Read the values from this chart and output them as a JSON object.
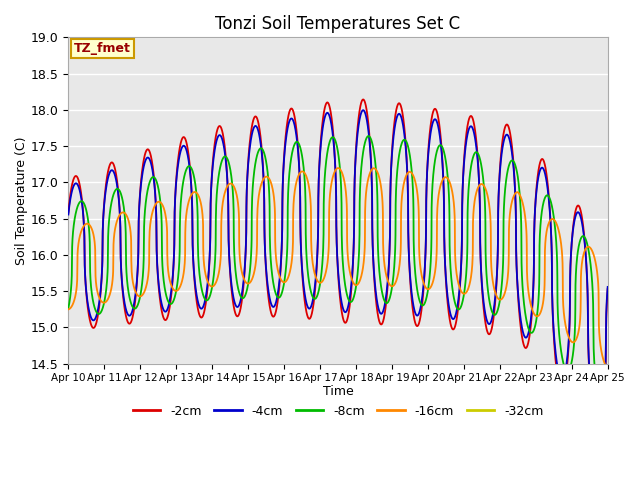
{
  "title": "Tonzi Soil Temperatures Set C",
  "xlabel": "Time",
  "ylabel": "Soil Temperature (C)",
  "ylim": [
    14.5,
    19.0
  ],
  "xlim": [
    0,
    15
  ],
  "annotation_text": "TZ_fmet",
  "annotation_bg": "#ffffcc",
  "annotation_border": "#cc9900",
  "background_color": "#e8e8e8",
  "grid_color": "white",
  "x_tick_labels": [
    "Apr 10",
    "Apr 11",
    "Apr 12",
    "Apr 13",
    "Apr 14",
    "Apr 15",
    "Apr 16",
    "Apr 17",
    "Apr 18",
    "Apr 19",
    "Apr 20",
    "Apr 21",
    "Apr 22",
    "Apr 23",
    "Apr 24",
    "Apr 25"
  ],
  "series": {
    "-2cm": {
      "color": "#dd0000",
      "lw": 1.3
    },
    "-4cm": {
      "color": "#0000cc",
      "lw": 1.3
    },
    "-8cm": {
      "color": "#00bb00",
      "lw": 1.3
    },
    "-16cm": {
      "color": "#ff8800",
      "lw": 1.3
    },
    "-32cm": {
      "color": "#cccc00",
      "lw": 1.3
    }
  },
  "legend_colors": [
    "#dd0000",
    "#0000cc",
    "#00bb00",
    "#ff8800",
    "#cccc00"
  ],
  "legend_labels": [
    "-2cm",
    "-4cm",
    "-8cm",
    "-16cm",
    "-32cm"
  ]
}
